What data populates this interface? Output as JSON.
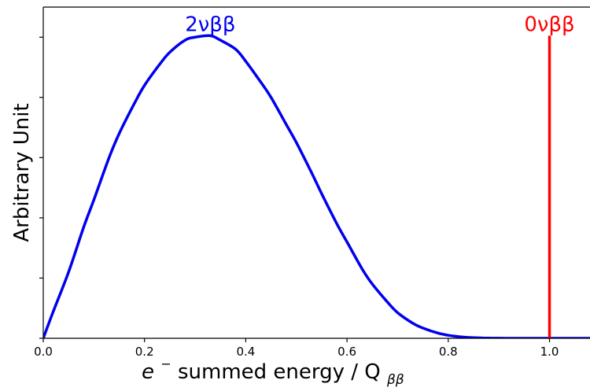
{
  "chart_data": {
    "type": "line",
    "title": "",
    "xlabel": {
      "prefix": "e",
      "superscript": "−",
      "middle": " summed energy / Q",
      "subscript": "ββ"
    },
    "ylabel": "Arbitrary Unit",
    "xlim": [
      0.0,
      1.08
    ],
    "ylim": [
      0.0,
      1.1
    ],
    "x_ticks": [
      "0.0",
      "0.2",
      "0.4",
      "0.6",
      "0.8",
      "1.0"
    ],
    "y_ticks_labeled": false,
    "grid": false,
    "series": [
      {
        "label": "2νββ",
        "color": "#0000ee",
        "x": [
          0.0,
          0.02,
          0.05,
          0.08,
          0.1,
          0.13,
          0.15,
          0.18,
          0.2,
          0.23,
          0.25,
          0.28,
          0.3,
          0.33,
          0.35,
          0.38,
          0.4,
          0.43,
          0.45,
          0.48,
          0.5,
          0.53,
          0.55,
          0.58,
          0.6,
          0.63,
          0.65,
          0.68,
          0.7,
          0.73,
          0.75,
          0.78,
          0.8,
          0.83,
          0.85,
          0.88,
          0.9,
          0.93,
          0.95,
          0.98,
          1.0,
          1.08
        ],
        "y": [
          0.0,
          0.09,
          0.22,
          0.37,
          0.46,
          0.6,
          0.68,
          0.78,
          0.84,
          0.91,
          0.95,
          0.99,
          1.0,
          1.005,
          0.99,
          0.96,
          0.92,
          0.85,
          0.8,
          0.71,
          0.65,
          0.55,
          0.48,
          0.38,
          0.32,
          0.23,
          0.18,
          0.12,
          0.085,
          0.05,
          0.034,
          0.017,
          0.01,
          0.004,
          0.002,
          0.0005,
          0.0002,
          0.0,
          0.0,
          0.0,
          0.0,
          0.0
        ]
      },
      {
        "label": "0νββ",
        "color": "#ff0000",
        "x": [
          1.0,
          1.0
        ],
        "y": [
          0.0,
          1.005
        ]
      }
    ],
    "annotations": [
      {
        "text": "2νββ",
        "x": 0.33,
        "y": 1.005,
        "color": "#0000ee"
      },
      {
        "text": "0νββ",
        "x": 1.0,
        "y": 1.005,
        "color": "#ff0000"
      }
    ]
  }
}
